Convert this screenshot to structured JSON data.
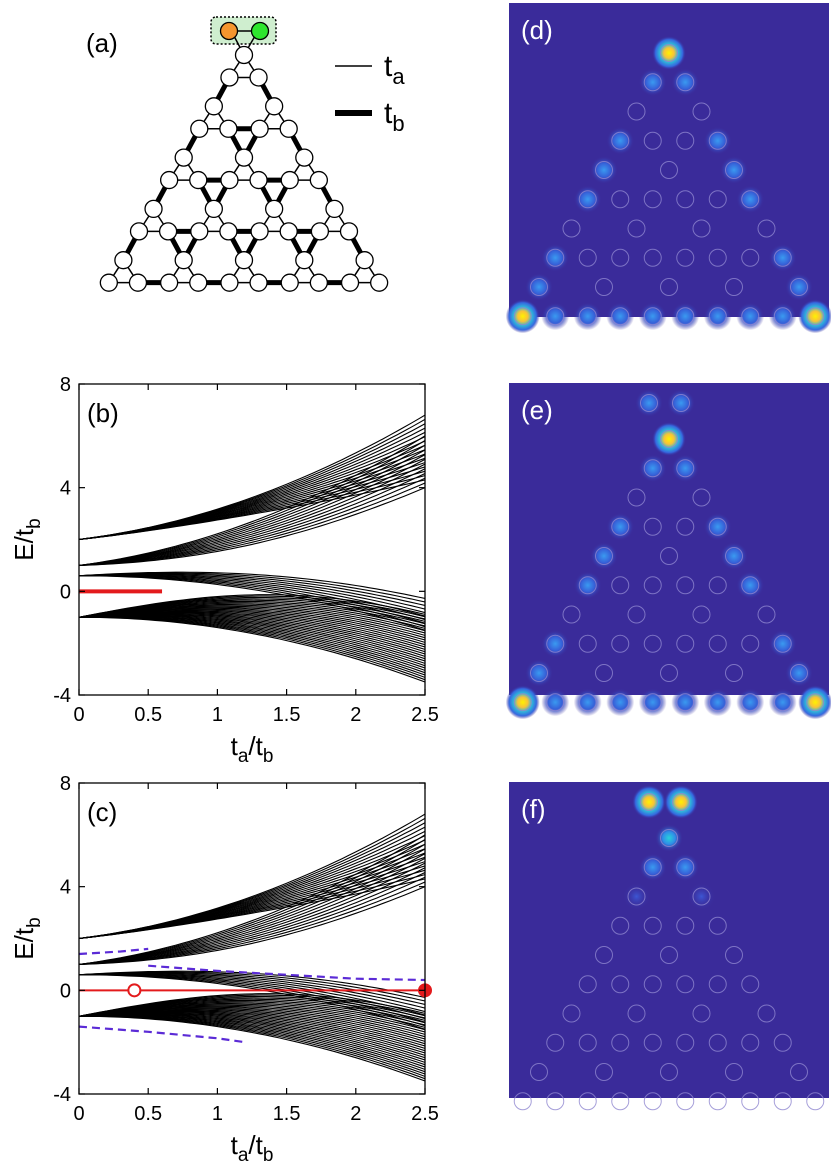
{
  "panel_labels": {
    "a": "(a)",
    "b": "(b)",
    "c": "(c)",
    "d": "(d)",
    "e": "(e)",
    "f": "(f)"
  },
  "legend": {
    "ta_main": "t",
    "ta_sub": "a",
    "tb_main": "t",
    "tb_sub": "b"
  },
  "colors": {
    "heatmap_bg": "#3a2b9a",
    "edge_state": "#e31a1c",
    "corner_state": "#5b2bd6",
    "site_orange": "#f5952e",
    "site_green": "#2ee62e",
    "highlight_box": "#cfeecf"
  },
  "chart_data": [
    {
      "type": "line",
      "panel": "(b)",
      "xlabel_main": "t",
      "xlabel_sub": "a",
      "xlabel_den_main": "t",
      "xlabel_den_sub": "b",
      "ylabel_main": "E/t",
      "ylabel_sub": "b",
      "xlim": [
        0,
        2.5
      ],
      "ylim": [
        -4,
        8
      ],
      "xticks": [
        "0",
        "0.5",
        "1",
        "1.5",
        "2",
        "2.5"
      ],
      "xtick_values": [
        0,
        0.5,
        1,
        1.5,
        2,
        2.5
      ],
      "yticks": [
        "-4",
        "0",
        "4",
        "8"
      ],
      "ytick_values": [
        -4,
        0,
        4,
        8
      ],
      "band_groups": [
        {
          "start": 2,
          "end_min": 4.3,
          "end_max": 6.8,
          "count": 16
        },
        {
          "start": 1,
          "end_min": 4.0,
          "end_max": 6.0,
          "count": 12
        },
        {
          "start": 0.6,
          "end_min": -0.6,
          "end_max": -1.5,
          "count": 10
        },
        {
          "start": -1,
          "end_min": -1.5,
          "end_max": -3.5,
          "count": 30
        }
      ],
      "zero_mode": {
        "x": [
          0,
          0.6
        ],
        "y": [
          0,
          0
        ]
      }
    },
    {
      "type": "line",
      "panel": "(c)",
      "xlabel_main": "t",
      "xlabel_sub": "a",
      "xlabel_den_main": "t",
      "xlabel_den_sub": "b",
      "ylabel_main": "E/t",
      "ylabel_sub": "b",
      "xlim": [
        0,
        2.5
      ],
      "ylim": [
        -4,
        8
      ],
      "xticks": [
        "0",
        "0.5",
        "1",
        "1.5",
        "2",
        "2.5"
      ],
      "xtick_values": [
        0,
        0.5,
        1,
        1.5,
        2,
        2.5
      ],
      "yticks": [
        "-4",
        "0",
        "4",
        "8"
      ],
      "ytick_values": [
        -4,
        0,
        4,
        8
      ],
      "band_groups": [
        {
          "start": 2,
          "end_min": 4.3,
          "end_max": 6.8,
          "count": 16
        },
        {
          "start": 1,
          "end_min": 4.0,
          "end_max": 6.0,
          "count": 12
        },
        {
          "start": 0.6,
          "end_min": -0.6,
          "end_max": -1.5,
          "count": 10
        },
        {
          "start": -1,
          "end_min": -1.5,
          "end_max": -3.5,
          "count": 30
        }
      ],
      "zero_mode": {
        "x": [
          0,
          2.5
        ],
        "y": [
          0,
          0
        ]
      },
      "markers": [
        {
          "x": 0.4,
          "y": 0,
          "style": "open"
        },
        {
          "x": 2.5,
          "y": 0,
          "style": "filled"
        }
      ],
      "dashed_states": [
        {
          "x": [
            0,
            0.3,
            0.5
          ],
          "y": [
            1.4,
            1.5,
            1.6
          ]
        },
        {
          "x": [
            0.5,
            1,
            1.5,
            2,
            2.5
          ],
          "y": [
            0.95,
            0.75,
            0.6,
            0.45,
            0.4
          ]
        },
        {
          "x": [
            0,
            0.5,
            1,
            1.2
          ],
          "y": [
            -1.4,
            -1.6,
            -1.85,
            -2.0
          ]
        }
      ]
    }
  ]
}
